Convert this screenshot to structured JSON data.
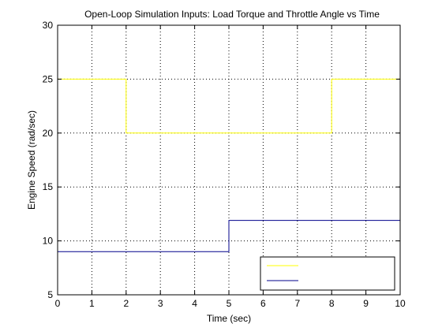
{
  "chart_data": {
    "type": "line",
    "title": "Open-Loop Simulation Inputs: Load Torque and Throttle Angle vs Time",
    "xlabel": "Time (sec)",
    "ylabel": "Engine Speed (rad/sec)",
    "xlim": [
      0,
      10
    ],
    "ylim": [
      5,
      30
    ],
    "xticks": [
      0,
      1,
      2,
      3,
      4,
      5,
      6,
      7,
      8,
      9,
      10
    ],
    "yticks": [
      5,
      10,
      15,
      20,
      25,
      30
    ],
    "grid": "dotted",
    "legend_position": "bottom-right",
    "series": [
      {
        "color": "#ffff00",
        "x": [
          0,
          2,
          2,
          8,
          8,
          10
        ],
        "y": [
          25,
          25,
          20,
          20,
          25,
          25
        ]
      },
      {
        "color": "#00008b",
        "x": [
          0,
          5,
          5,
          10
        ],
        "y": [
          9,
          9,
          11.9,
          11.9
        ]
      }
    ]
  }
}
